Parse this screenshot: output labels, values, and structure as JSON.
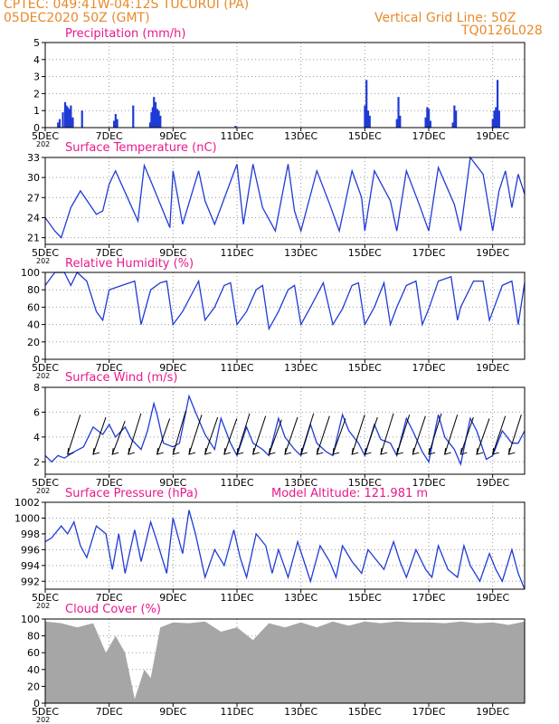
{
  "header": {
    "line1": "CPTEC:   049:41W-04:12S   TUCURUI (PA)",
    "line2": "05DEC2020 50Z (GMT)",
    "grid_note": "Vertical Grid Line: 50Z",
    "model_id": "TQ0126L028",
    "color": "#e8892a"
  },
  "colors": {
    "title": "#e8198b",
    "series": "#1f3bd6",
    "cloud": "#a6a6a6",
    "arrow": "#000000"
  },
  "x_axis": {
    "ticks": [
      "5DEC",
      "7DEC",
      "9DEC",
      "11DEC",
      "13DEC",
      "15DEC",
      "17DEC",
      "19DEC"
    ],
    "tick_values": [
      0,
      2,
      4,
      6,
      8,
      10,
      12,
      14
    ],
    "range_days": [
      0,
      15
    ],
    "clipped_label": "202"
  },
  "chart_data": [
    {
      "type": "bar",
      "title": "Precipitation (mm/h)",
      "ylim": [
        0,
        5
      ],
      "yticks": [
        "0",
        "1",
        "2",
        "3",
        "4",
        "5"
      ],
      "x_days": [
        0.4,
        0.45,
        0.55,
        0.62,
        0.66,
        0.7,
        0.75,
        0.8,
        0.86,
        1.15,
        2.15,
        2.2,
        2.25,
        2.75,
        3.28,
        3.32,
        3.36,
        3.4,
        3.45,
        3.5,
        3.55,
        3.6,
        5.95,
        10.0,
        10.05,
        10.1,
        10.15,
        11.0,
        11.05,
        11.1,
        11.9,
        11.95,
        12.0,
        12.05,
        12.75,
        12.8,
        12.85,
        14.0,
        14.05,
        14.1,
        14.15,
        14.2
      ],
      "values": [
        0.3,
        0.5,
        0.9,
        1.5,
        1.3,
        1.2,
        1.1,
        1.3,
        0.6,
        1.0,
        0.4,
        0.8,
        0.5,
        1.3,
        0.3,
        0.9,
        1.2,
        1.8,
        1.5,
        1.1,
        1.0,
        0.7,
        0.1,
        1.3,
        2.8,
        1.0,
        0.7,
        0.5,
        1.8,
        0.7,
        0.6,
        1.2,
        1.1,
        0.4,
        0.3,
        1.3,
        1.0,
        0.5,
        1.0,
        1.2,
        2.8,
        1.0
      ]
    },
    {
      "type": "line",
      "title": "Surface Temperature (nC)",
      "ylim": [
        20,
        33
      ],
      "yticks": [
        "21",
        "24",
        "27",
        "30",
        "33"
      ],
      "x": [
        0,
        0.3,
        0.5,
        0.8,
        1.1,
        1.6,
        1.8,
        2.0,
        2.2,
        2.9,
        3.1,
        3.3,
        3.9,
        4.0,
        4.3,
        4.8,
        5.0,
        5.3,
        6.0,
        6.2,
        6.5,
        6.8,
        7.2,
        7.6,
        7.8,
        8.0,
        8.5,
        8.9,
        9.2,
        9.6,
        9.9,
        10.0,
        10.3,
        10.8,
        11.0,
        11.3,
        11.7,
        12.0,
        12.3,
        12.8,
        13.0,
        13.3,
        13.7,
        14.0,
        14.2,
        14.4,
        14.6,
        14.8,
        15.0
      ],
      "values": [
        24.0,
        22.0,
        21.0,
        25.5,
        28.0,
        24.5,
        25.0,
        29.0,
        31.0,
        23.5,
        31.8,
        29.5,
        22.5,
        31.0,
        23.0,
        31.0,
        26.5,
        23.0,
        32.0,
        23.0,
        32.0,
        25.5,
        22.0,
        32.0,
        25.0,
        22.0,
        31.0,
        26.0,
        22.0,
        31.0,
        27.0,
        22.0,
        31.0,
        26.5,
        22.0,
        31.0,
        26.0,
        22.0,
        31.5,
        26.0,
        22.0,
        33.0,
        30.5,
        22.0,
        28.0,
        31.0,
        25.5,
        30.5,
        27.5
      ]
    },
    {
      "type": "line",
      "title": "Relative Humidity (%)",
      "ylim": [
        0,
        100
      ],
      "yticks": [
        "0",
        "20",
        "40",
        "60",
        "80",
        "100"
      ],
      "x": [
        0,
        0.3,
        0.6,
        0.8,
        1.0,
        1.3,
        1.6,
        1.8,
        2.0,
        2.4,
        2.8,
        3.0,
        3.3,
        3.6,
        3.8,
        4.0,
        4.3,
        4.8,
        5.0,
        5.3,
        5.6,
        5.8,
        6.0,
        6.3,
        6.6,
        6.8,
        7.0,
        7.3,
        7.6,
        7.8,
        8.0,
        8.3,
        8.7,
        9.0,
        9.3,
        9.6,
        9.8,
        10.0,
        10.3,
        10.6,
        10.8,
        11.0,
        11.3,
        11.6,
        11.8,
        12.0,
        12.3,
        12.7,
        12.9,
        13.0,
        13.4,
        13.7,
        13.9,
        14.0,
        14.3,
        14.6,
        14.8,
        15.0
      ],
      "values": [
        85,
        100,
        100,
        85,
        100,
        90,
        55,
        45,
        80,
        85,
        90,
        40,
        80,
        88,
        90,
        40,
        55,
        90,
        45,
        60,
        85,
        88,
        40,
        55,
        80,
        85,
        35,
        55,
        80,
        85,
        40,
        60,
        88,
        40,
        58,
        85,
        88,
        40,
        60,
        88,
        40,
        60,
        85,
        90,
        40,
        58,
        90,
        95,
        45,
        60,
        90,
        90,
        45,
        55,
        85,
        90,
        40,
        88
      ]
    },
    {
      "type": "line",
      "title": "Surface Wind (m/s)",
      "ylim": [
        1,
        8
      ],
      "yticks": [
        "2",
        "4",
        "6",
        "8"
      ],
      "x": [
        0,
        0.2,
        0.4,
        0.6,
        0.9,
        1.2,
        1.5,
        1.8,
        2.0,
        2.2,
        2.5,
        2.7,
        3.0,
        3.2,
        3.4,
        3.5,
        3.7,
        4.0,
        4.2,
        4.5,
        4.7,
        5.0,
        5.3,
        5.5,
        5.8,
        6.0,
        6.3,
        6.5,
        6.8,
        7.0,
        7.3,
        7.5,
        7.8,
        8.0,
        8.3,
        8.5,
        8.8,
        9.0,
        9.3,
        9.5,
        9.8,
        10.0,
        10.3,
        10.5,
        10.8,
        11.0,
        11.3,
        11.5,
        11.8,
        12.0,
        12.3,
        12.5,
        12.8,
        13.0,
        13.3,
        13.5,
        13.8,
        14.0,
        14.3,
        14.6,
        14.8,
        15.0
      ],
      "values": [
        2.5,
        2.0,
        2.5,
        2.3,
        2.8,
        3.2,
        4.8,
        4.2,
        5.0,
        4.0,
        4.8,
        3.8,
        3.0,
        4.5,
        6.7,
        5.8,
        3.5,
        3.2,
        3.5,
        7.3,
        6.0,
        4.2,
        3.0,
        5.5,
        3.5,
        2.5,
        4.8,
        3.5,
        3.0,
        2.5,
        5.5,
        4.0,
        3.0,
        2.5,
        5.0,
        3.5,
        2.8,
        2.5,
        5.8,
        4.5,
        3.5,
        2.5,
        5.0,
        3.8,
        3.5,
        2.5,
        5.5,
        4.5,
        2.8,
        2.0,
        5.8,
        4.0,
        3.0,
        1.8,
        5.5,
        4.5,
        2.2,
        2.5,
        4.5,
        3.5,
        3.5,
        4.5
      ]
    },
    {
      "type": "line",
      "title": "Surface Pressure (hPa)",
      "annotation": "Model Altitude: 121.981 m",
      "ylim": [
        991,
        1002
      ],
      "yticks": [
        "992",
        "994",
        "996",
        "998",
        "1000",
        "1002"
      ],
      "x": [
        0,
        0.2,
        0.5,
        0.7,
        0.9,
        1.1,
        1.3,
        1.6,
        1.9,
        2.1,
        2.3,
        2.5,
        2.8,
        3.0,
        3.3,
        3.5,
        3.8,
        4.0,
        4.3,
        4.5,
        4.7,
        5.0,
        5.3,
        5.6,
        5.9,
        6.1,
        6.3,
        6.6,
        6.9,
        7.1,
        7.3,
        7.6,
        7.9,
        8.1,
        8.3,
        8.6,
        8.9,
        9.1,
        9.3,
        9.6,
        9.9,
        10.1,
        10.3,
        10.6,
        10.9,
        11.1,
        11.3,
        11.6,
        11.9,
        12.1,
        12.3,
        12.6,
        12.9,
        13.1,
        13.3,
        13.6,
        13.9,
        14.1,
        14.3,
        14.6,
        14.8,
        15.0
      ],
      "values": [
        997.0,
        997.5,
        999.0,
        998.0,
        999.5,
        996.5,
        995.0,
        999.0,
        998.0,
        993.5,
        998.0,
        993.0,
        998.5,
        994.5,
        999.5,
        997.0,
        993.0,
        1000.0,
        995.5,
        1001.0,
        998.0,
        992.5,
        996.0,
        994.0,
        998.5,
        995.0,
        992.5,
        998.0,
        996.5,
        993.0,
        996.0,
        992.5,
        997.0,
        994.5,
        992.0,
        996.5,
        994.5,
        992.5,
        996.5,
        994.5,
        993.0,
        996.0,
        995.0,
        993.5,
        997.0,
        994.5,
        992.5,
        996.0,
        993.5,
        992.5,
        996.5,
        993.5,
        992.5,
        996.5,
        994.0,
        992.0,
        995.5,
        993.5,
        992.0,
        996.0,
        993.0,
        991.0
      ]
    },
    {
      "type": "bar",
      "title": "Cloud Cover (%)",
      "ylim": [
        0,
        100
      ],
      "yticks": [
        "0",
        "20",
        "40",
        "60",
        "80",
        "100"
      ],
      "x": [
        0,
        0.5,
        1.0,
        1.5,
        1.9,
        2.2,
        2.5,
        2.8,
        3.1,
        3.3,
        3.6,
        4.0,
        4.5,
        5.0,
        5.5,
        6.0,
        6.5,
        7.0,
        7.5,
        8.0,
        8.5,
        9.0,
        9.5,
        10.0,
        10.5,
        11.0,
        11.5,
        12.0,
        12.5,
        13.0,
        13.5,
        14.0,
        14.5,
        15.0
      ],
      "values": [
        97,
        95,
        90,
        95,
        60,
        80,
        60,
        5,
        40,
        30,
        90,
        96,
        95,
        97,
        85,
        90,
        75,
        95,
        90,
        96,
        90,
        97,
        92,
        97,
        95,
        97,
        96,
        96,
        95,
        97,
        95,
        96,
        93,
        97
      ]
    }
  ],
  "wind_arrows": {
    "x_days": [
      0.7,
      1.5,
      2.1,
      2.6,
      3.5,
      4.0,
      4.5,
      5.0,
      5.6,
      6.0,
      6.5,
      7.0,
      7.5,
      8.0,
      8.5,
      9.0,
      9.6,
      10.0,
      10.5,
      11.0,
      11.5,
      12.0,
      12.5,
      13.0,
      13.5,
      14.0,
      14.5
    ],
    "speeds": [
      5.5,
      5.3,
      5.0,
      5.6,
      5.2,
      5.8,
      5.5,
      5.3,
      5.2,
      5.6,
      5.4,
      5.1,
      5.3,
      5.6,
      5.4,
      5.2,
      5.5,
      5.3,
      5.6,
      5.5,
      5.4,
      5.6,
      5.5,
      5.3,
      5.2,
      5.4,
      5.5
    ],
    "direction": "NE"
  }
}
